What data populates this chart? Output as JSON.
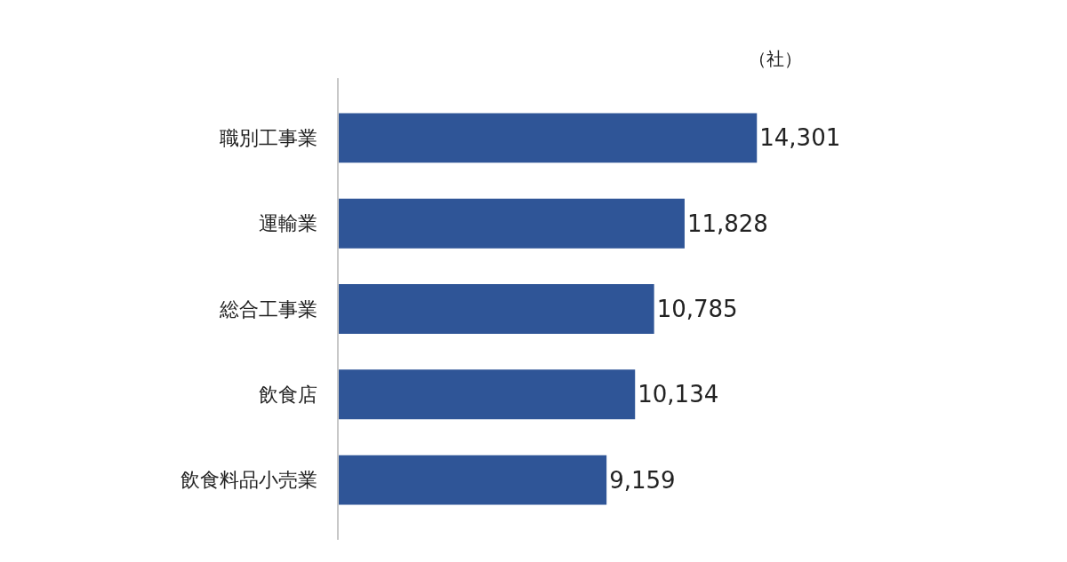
{
  "chart_data": {
    "type": "bar",
    "orientation": "horizontal",
    "categories": [
      "職別工事業",
      "運輸業",
      "総合工事業",
      "飲食店",
      "飲食料品小売業"
    ],
    "values": [
      14301,
      11828,
      10785,
      10134,
      9159
    ],
    "color": "#2f5597",
    "data_labels": true,
    "value_labels": [
      "14,301",
      "11,828",
      "10,785",
      "10,134",
      "9,159"
    ],
    "annotations": [
      "（社）"
    ]
  }
}
